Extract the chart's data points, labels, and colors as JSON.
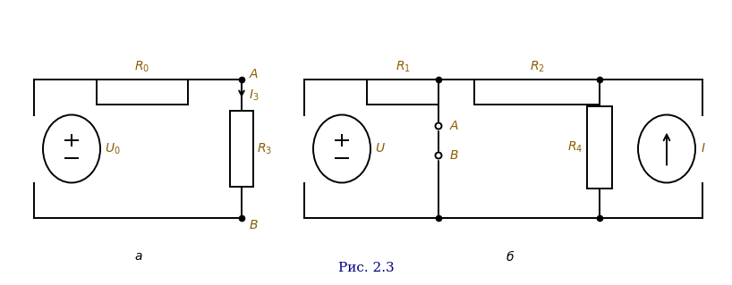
{
  "fig_width": 8.18,
  "fig_height": 3.19,
  "dpi": 100,
  "bg_color": "#ffffff",
  "line_color": "#000000",
  "label_color": "#8B5E00",
  "label_fontsize": 10,
  "caption_fontsize": 11,
  "caption_color": "#000080",
  "caption": "Рис. 2.3"
}
